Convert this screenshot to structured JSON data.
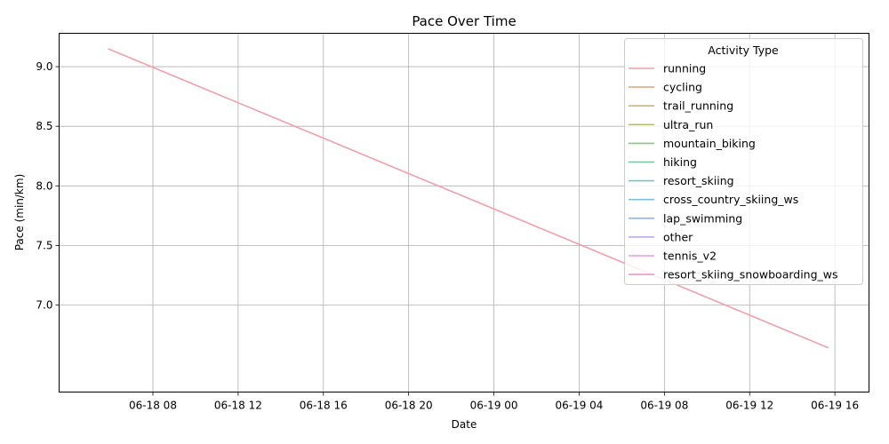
{
  "chart_data": {
    "type": "line",
    "title": "Pace Over Time",
    "xlabel": "Date",
    "ylabel": "Pace (min/km)",
    "x_ticks": [
      "06-18 08",
      "06-18 12",
      "06-18 16",
      "06-18 20",
      "06-19 00",
      "06-19 04",
      "06-19 08",
      "06-19 12",
      "06-19 16"
    ],
    "y_ticks": [
      "7.0",
      "7.5",
      "8.0",
      "8.5",
      "9.0"
    ],
    "x_tick_hours": [
      8,
      12,
      16,
      20,
      24,
      28,
      32,
      36,
      40
    ],
    "xlim_hours": [
      3.6,
      41.6
    ],
    "ylim": [
      6.27,
      9.28
    ],
    "grid": true,
    "legend": {
      "title": "Activity Type",
      "placement": "top-right"
    },
    "series": [
      {
        "name": "running",
        "color": "#f0a0ac",
        "x_hours": [
          5.9,
          39.7
        ],
        "values": [
          9.15,
          6.64
        ]
      },
      {
        "name": "cycling",
        "color": "#e4aa82",
        "x_hours": [],
        "values": []
      },
      {
        "name": "trail_running",
        "color": "#d0b376",
        "x_hours": [],
        "values": []
      },
      {
        "name": "ultra_run",
        "color": "#b4bc76",
        "x_hours": [],
        "values": []
      },
      {
        "name": "mountain_biking",
        "color": "#8ec87c",
        "x_hours": [],
        "values": []
      },
      {
        "name": "hiking",
        "color": "#76c4a4",
        "x_hours": [],
        "values": []
      },
      {
        "name": "resort_skiing",
        "color": "#76c4c0",
        "x_hours": [],
        "values": []
      },
      {
        "name": "cross_country_skiing_ws",
        "color": "#7cbedc",
        "x_hours": [],
        "values": []
      },
      {
        "name": "lap_swimming",
        "color": "#8cb6ee",
        "x_hours": [],
        "values": []
      },
      {
        "name": "other",
        "color": "#bcaaec",
        "x_hours": [],
        "values": []
      },
      {
        "name": "tennis_v2",
        "color": "#e69ce8",
        "x_hours": [],
        "values": []
      },
      {
        "name": "resort_skiing_snowboarding_ws",
        "color": "#ee98cc",
        "x_hours": [],
        "values": []
      }
    ]
  }
}
